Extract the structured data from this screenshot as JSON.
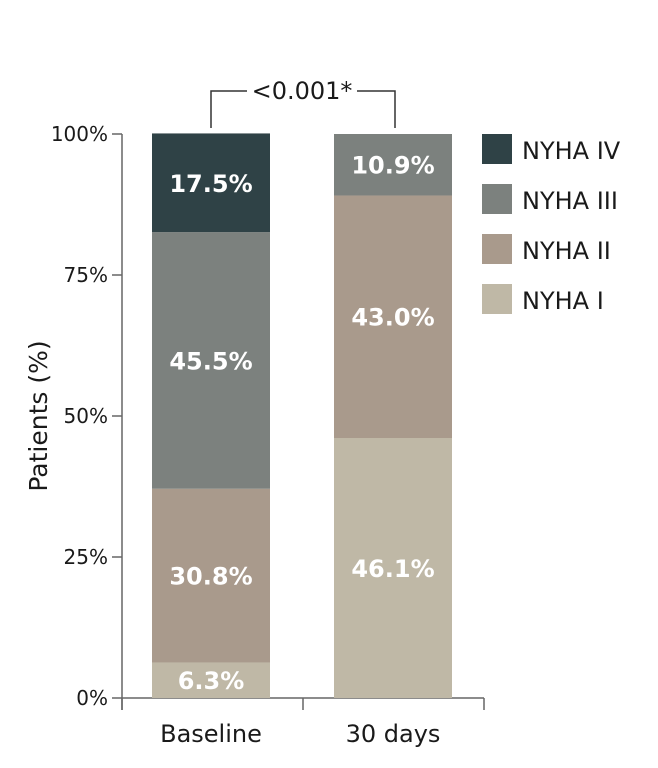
{
  "chart_data": {
    "type": "bar",
    "stacked": true,
    "categories": [
      "Baseline",
      "30 days"
    ],
    "series": [
      {
        "name": "NYHA I",
        "values": [
          6.3,
          46.1
        ],
        "labels": [
          "6.3%",
          "46.1%"
        ],
        "color": "#bfb8a6"
      },
      {
        "name": "NYHA II",
        "values": [
          30.8,
          43.0
        ],
        "labels": [
          "30.8%",
          "43.0%"
        ],
        "color": "#a99a8c"
      },
      {
        "name": "NYHA III",
        "values": [
          45.5,
          10.9
        ],
        "labels": [
          "45.5%",
          "10.9%"
        ],
        "color": "#7c817e"
      },
      {
        "name": "NYHA IV",
        "values": [
          17.5,
          0
        ],
        "labels": [
          "17.5%",
          ""
        ],
        "color": "#2f4246"
      }
    ],
    "ylabel": "Patients (%)",
    "ylim": [
      0,
      100
    ],
    "yticks": [
      0,
      25,
      50,
      75,
      100
    ],
    "ytick_labels": [
      "0%",
      "25%",
      "50%",
      "75%",
      "100%"
    ],
    "annotation": "<0.001*",
    "legend": {
      "placement": "right",
      "order": [
        "NYHA IV",
        "NYHA III",
        "NYHA II",
        "NYHA I"
      ]
    },
    "grid": false
  }
}
